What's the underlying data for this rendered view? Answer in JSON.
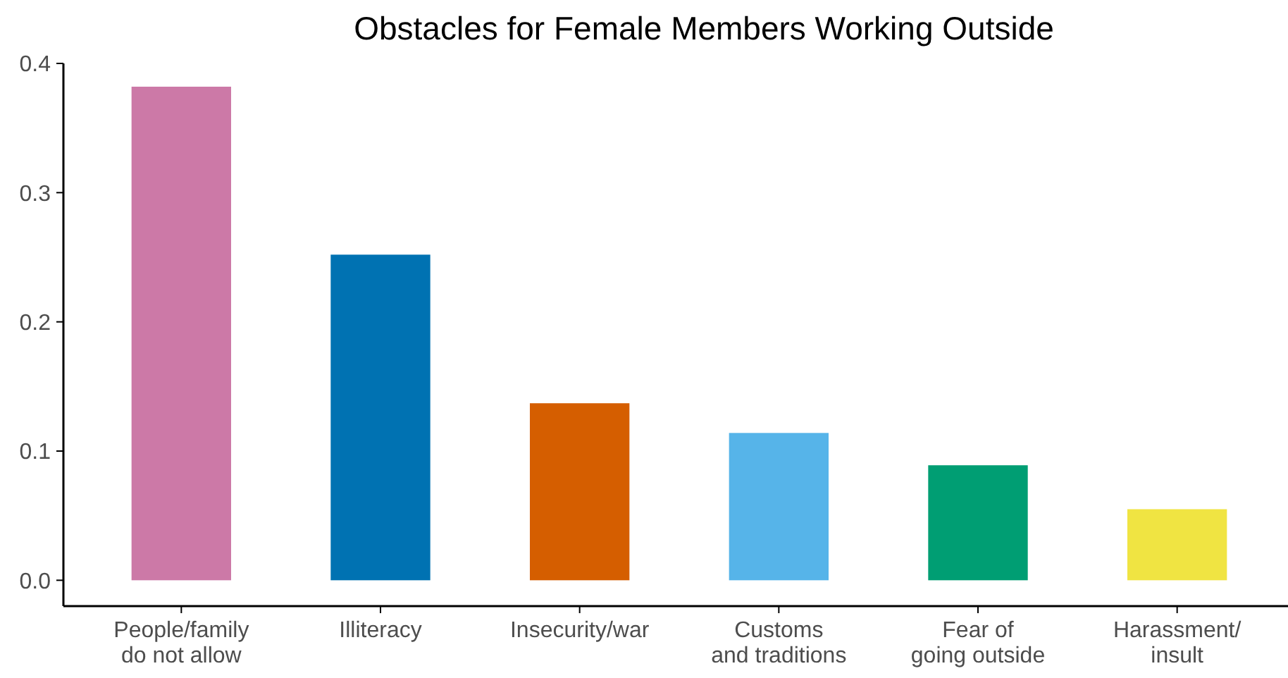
{
  "chart_data": {
    "type": "bar",
    "title": "Obstacles for Female Members Working Outside",
    "categories": [
      "People/family\ndo not allow",
      "Illiteracy",
      "Insecurity/war",
      "Customs\nand traditions",
      "Fear of\ngoing outside",
      "Harassment/\ninsult"
    ],
    "values": [
      0.382,
      0.252,
      0.137,
      0.114,
      0.089,
      0.055
    ],
    "colors": [
      "#cc79a7",
      "#0072b2",
      "#d55e00",
      "#56b4e9",
      "#009e73",
      "#f0e442"
    ],
    "ylim": [
      -0.02,
      0.4
    ],
    "yticks": [
      {
        "value": 0,
        "label": "0.0"
      },
      0.1,
      0.2,
      0.3,
      0.4
    ],
    "grid": false
  }
}
